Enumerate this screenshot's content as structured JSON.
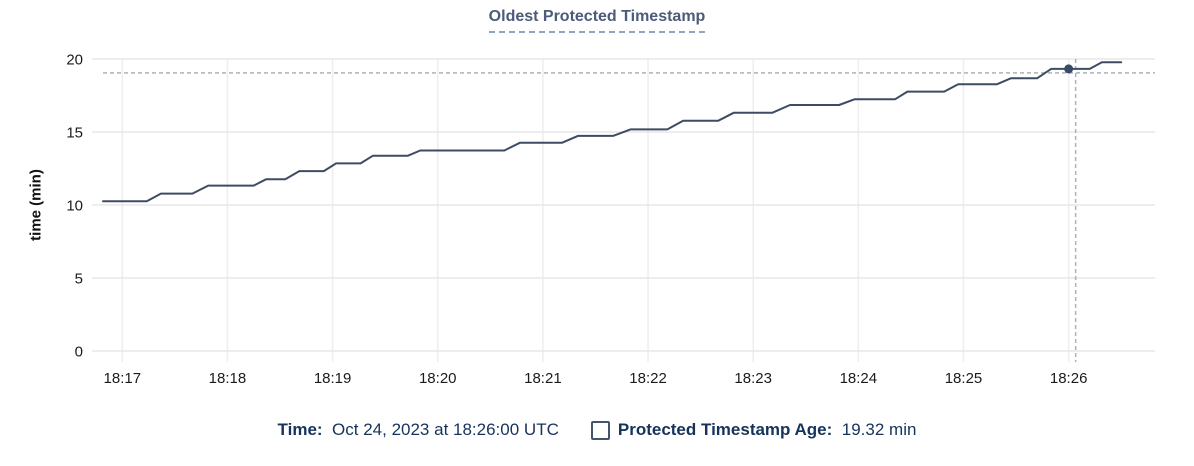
{
  "title": "Oldest Protected Timestamp",
  "chart_data": {
    "type": "line",
    "title": "Oldest Protected Timestamp",
    "xlabel": "",
    "ylabel": "time (min)",
    "ylim": [
      0,
      20
    ],
    "yticks": [
      0,
      5,
      10,
      15,
      20
    ],
    "xticks": [
      "18:17",
      "18:18",
      "18:19",
      "18:20",
      "18:21",
      "18:22",
      "18:23",
      "18:24",
      "18:25",
      "18:26"
    ],
    "grid": true,
    "legend_position": "none",
    "series": [
      {
        "name": "Protected Timestamp Age",
        "points": [
          [
            "18:16:49",
            10.25
          ],
          [
            "18:17:14",
            10.25
          ],
          [
            "18:17:22",
            10.78
          ],
          [
            "18:17:40",
            10.78
          ],
          [
            "18:17:49",
            11.33
          ],
          [
            "18:18:15",
            11.33
          ],
          [
            "18:18:22",
            11.76
          ],
          [
            "18:18:33",
            11.76
          ],
          [
            "18:18:41",
            12.32
          ],
          [
            "18:18:55",
            12.32
          ],
          [
            "18:19:02",
            12.85
          ],
          [
            "18:19:16",
            12.85
          ],
          [
            "18:19:23",
            13.38
          ],
          [
            "18:19:43",
            13.38
          ],
          [
            "18:19:50",
            13.73
          ],
          [
            "18:20:38",
            13.73
          ],
          [
            "18:20:47",
            14.27
          ],
          [
            "18:21:11",
            14.27
          ],
          [
            "18:21:20",
            14.73
          ],
          [
            "18:21:40",
            14.73
          ],
          [
            "18:21:50",
            15.18
          ],
          [
            "18:22:11",
            15.18
          ],
          [
            "18:22:20",
            15.77
          ],
          [
            "18:22:40",
            15.77
          ],
          [
            "18:22:49",
            16.32
          ],
          [
            "18:23:11",
            16.32
          ],
          [
            "18:23:21",
            16.85
          ],
          [
            "18:23:49",
            16.85
          ],
          [
            "18:23:58",
            17.25
          ],
          [
            "18:24:21",
            17.25
          ],
          [
            "18:24:28",
            17.77
          ],
          [
            "18:24:49",
            17.77
          ],
          [
            "18:24:57",
            18.27
          ],
          [
            "18:25:19",
            18.27
          ],
          [
            "18:25:27",
            18.68
          ],
          [
            "18:25:42",
            18.68
          ],
          [
            "18:25:50",
            19.32
          ],
          [
            "18:26:12",
            19.32
          ],
          [
            "18:26:19",
            19.78
          ],
          [
            "18:26:30",
            19.78
          ]
        ]
      }
    ],
    "hover": {
      "point_time": "18:26:00",
      "point_value": 19.32,
      "crosshair_time": "18:26:04",
      "crosshair_value": 19.05
    }
  },
  "footer": {
    "time_label": "Time:",
    "time_value": "Oct 24, 2023 at 18:26:00 UTC",
    "series_label": "Protected Timestamp Age:",
    "series_value": "19.32 min"
  },
  "colors": {
    "accent_title": "#4c5b79",
    "underline": "#94a5c0",
    "line": "#3e4c63",
    "dot": "#394a66",
    "crosshair": "#a7b4bf",
    "grid_h": "#e7e7e7",
    "grid_v": "#eeeeee",
    "tick_text": "#1b1b1b",
    "footer_text": "#15335b",
    "checkbox_border": "#44546a"
  }
}
